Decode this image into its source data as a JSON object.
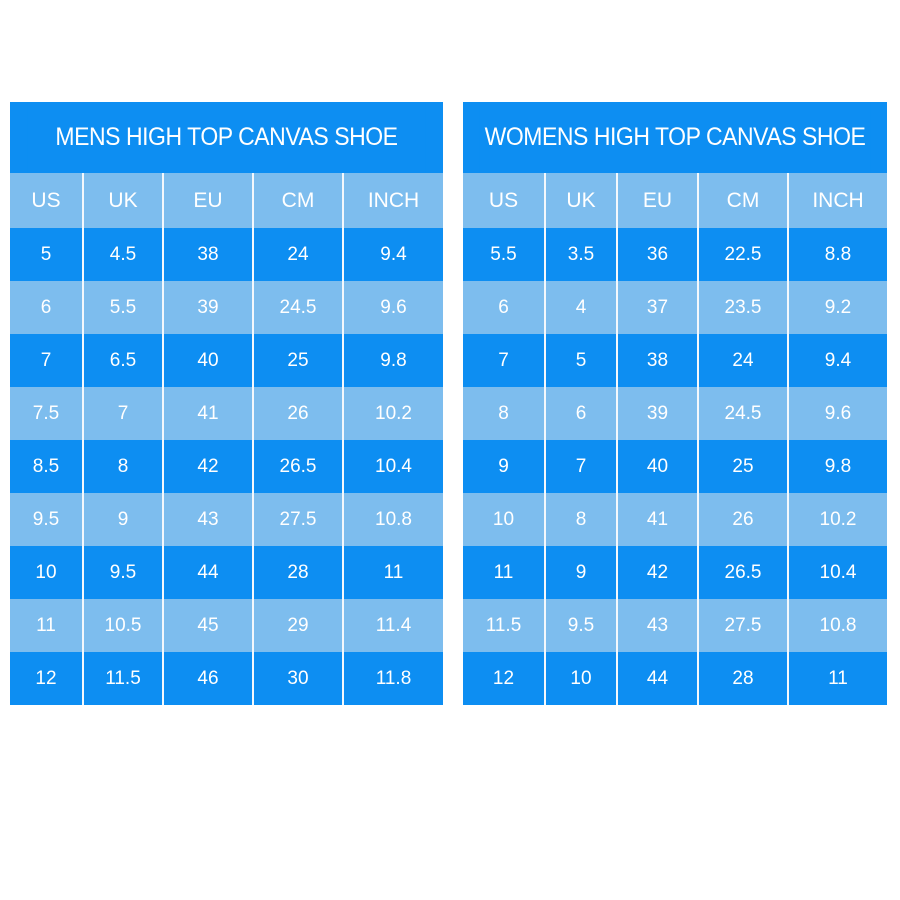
{
  "colors": {
    "dark_row": "#0d8ef2",
    "light_row": "#7dbdee",
    "text": "#ffffff"
  },
  "mens": {
    "title": "MENS HIGH TOP CANVAS SHOE",
    "headers": [
      "US",
      "UK",
      "EU",
      "CM",
      "INCH"
    ],
    "rows": [
      [
        "5",
        "4.5",
        "38",
        "24",
        "9.4"
      ],
      [
        "6",
        "5.5",
        "39",
        "24.5",
        "9.6"
      ],
      [
        "7",
        "6.5",
        "40",
        "25",
        "9.8"
      ],
      [
        "7.5",
        "7",
        "41",
        "26",
        "10.2"
      ],
      [
        "8.5",
        "8",
        "42",
        "26.5",
        "10.4"
      ],
      [
        "9.5",
        "9",
        "43",
        "27.5",
        "10.8"
      ],
      [
        "10",
        "9.5",
        "44",
        "28",
        "11"
      ],
      [
        "11",
        "10.5",
        "45",
        "29",
        "11.4"
      ],
      [
        "12",
        "11.5",
        "46",
        "30",
        "11.8"
      ]
    ]
  },
  "womens": {
    "title": "WOMENS HIGH TOP CANVAS SHOE",
    "headers": [
      "US",
      "UK",
      "EU",
      "CM",
      "INCH"
    ],
    "rows": [
      [
        "5.5",
        "3.5",
        "36",
        "22.5",
        "8.8"
      ],
      [
        "6",
        "4",
        "37",
        "23.5",
        "9.2"
      ],
      [
        "7",
        "5",
        "38",
        "24",
        "9.4"
      ],
      [
        "8",
        "6",
        "39",
        "24.5",
        "9.6"
      ],
      [
        "9",
        "7",
        "40",
        "25",
        "9.8"
      ],
      [
        "10",
        "8",
        "41",
        "26",
        "10.2"
      ],
      [
        "11",
        "9",
        "42",
        "26.5",
        "10.4"
      ],
      [
        "11.5",
        "9.5",
        "43",
        "27.5",
        "10.8"
      ],
      [
        "12",
        "10",
        "44",
        "28",
        "11"
      ]
    ]
  }
}
